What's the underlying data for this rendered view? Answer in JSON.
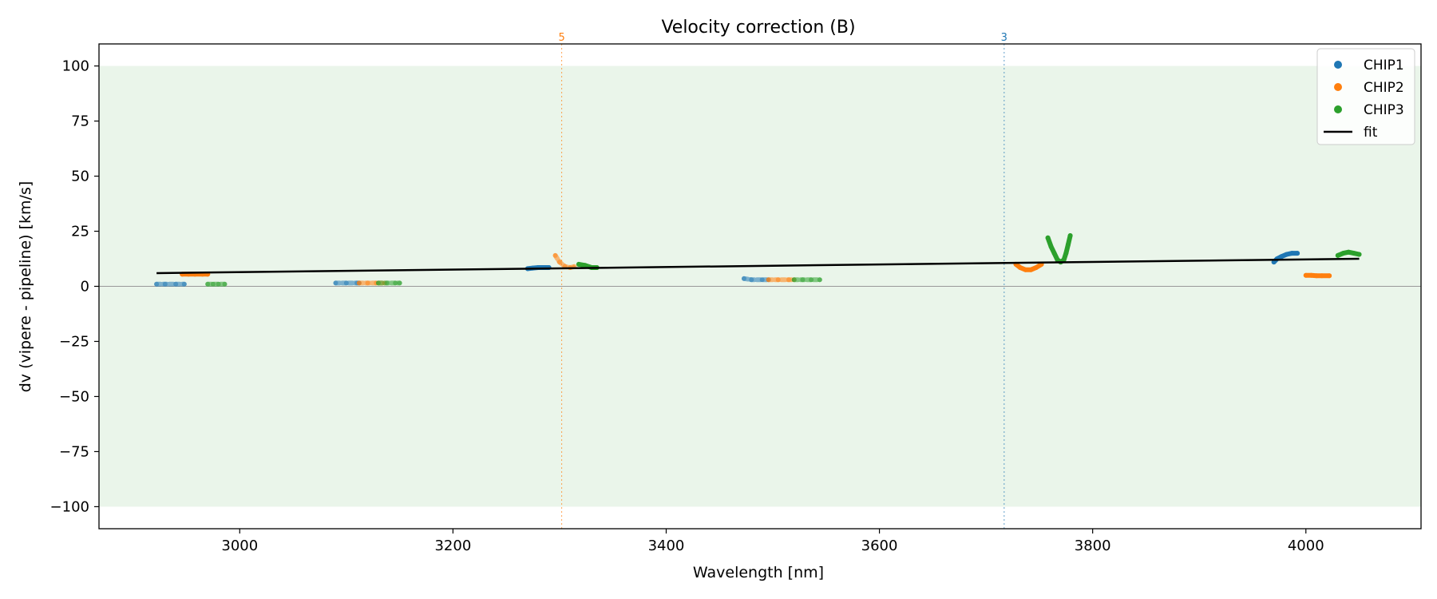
{
  "chart_data": {
    "type": "scatter",
    "title": "Velocity correction (B)",
    "xlabel": "Wavelength [nm]",
    "ylabel": "dv (vipere - pipeline) [km/s]",
    "xlim": [
      2868,
      4108
    ],
    "ylim": [
      -110,
      110
    ],
    "xticks": [
      3000,
      3200,
      3400,
      3600,
      3800,
      4000
    ],
    "yticks": [
      -100,
      -75,
      -50,
      -25,
      0,
      25,
      50,
      75,
      100
    ],
    "xtick_labels": [
      "3000",
      "3200",
      "3400",
      "3600",
      "3800",
      "4000"
    ],
    "ytick_labels": [
      "−100",
      "−75",
      "−50",
      "−25",
      "0",
      "25",
      "50",
      "75",
      "100"
    ],
    "grid": false,
    "legend_position": "top-right",
    "shaded_band": {
      "ymin": -100,
      "ymax": 100,
      "color": "#eaf5ea"
    },
    "zero_line": {
      "y": 0,
      "color": "#999999"
    },
    "colors": {
      "CHIP1": "#1f77b4",
      "CHIP2": "#ff7f0e",
      "CHIP3": "#2ca02c",
      "fit": "#000000"
    },
    "series": [
      {
        "name": "CHIP1",
        "color": "#1f77b4",
        "segments": [
          {
            "faded": true,
            "points": [
              [
                2922,
                1
              ],
              [
                2930,
                1
              ],
              [
                2940,
                1
              ],
              [
                2948,
                1
              ]
            ]
          },
          {
            "faded": true,
            "points": [
              [
                3090,
                1.5
              ],
              [
                3100,
                1.5
              ],
              [
                3110,
                1.5
              ],
              [
                3112,
                1.5
              ]
            ]
          },
          {
            "faded": false,
            "points": [
              [
                3270,
                8
              ],
              [
                3275,
                8.3
              ],
              [
                3280,
                8.5
              ],
              [
                3285,
                8.5
              ],
              [
                3290,
                8.5
              ]
            ]
          },
          {
            "faded": true,
            "points": [
              [
                3473,
                3.5
              ],
              [
                3480,
                3
              ],
              [
                3490,
                3
              ],
              [
                3496,
                3
              ]
            ]
          },
          {
            "faded": false,
            "points": [
              [
                3970,
                11
              ],
              [
                3973,
                12.5
              ],
              [
                3977,
                13.5
              ],
              [
                3982,
                14.5
              ],
              [
                3987,
                15
              ],
              [
                3992,
                15
              ]
            ]
          }
        ]
      },
      {
        "name": "CHIP2",
        "color": "#ff7f0e",
        "segments": [
          {
            "faded": false,
            "points": [
              [
                2946,
                5.5
              ],
              [
                2952,
                5.5
              ],
              [
                2958,
                5.5
              ],
              [
                2965,
                5.5
              ],
              [
                2970,
                5.5
              ]
            ]
          },
          {
            "faded": true,
            "points": [
              [
                3112,
                1.5
              ],
              [
                3120,
                1.5
              ],
              [
                3128,
                1.5
              ],
              [
                3136,
                1.5
              ]
            ]
          },
          {
            "faded": true,
            "points": [
              [
                3296,
                14
              ],
              [
                3300,
                11
              ],
              [
                3305,
                9
              ],
              [
                3310,
                8.5
              ],
              [
                3314,
                9
              ]
            ]
          },
          {
            "faded": true,
            "points": [
              [
                3496,
                3
              ],
              [
                3505,
                3
              ],
              [
                3515,
                3
              ],
              [
                3520,
                3
              ]
            ]
          },
          {
            "faded": false,
            "points": [
              [
                3728,
                10
              ],
              [
                3732,
                8.5
              ],
              [
                3737,
                7.5
              ],
              [
                3742,
                7.5
              ],
              [
                3747,
                8.5
              ],
              [
                3752,
                10
              ]
            ]
          },
          {
            "faded": false,
            "points": [
              [
                4000,
                5
              ],
              [
                4005,
                5
              ],
              [
                4010,
                4.8
              ],
              [
                4015,
                4.8
              ],
              [
                4022,
                4.8
              ]
            ]
          }
        ]
      },
      {
        "name": "CHIP3",
        "color": "#2ca02c",
        "segments": [
          {
            "faded": true,
            "points": [
              [
                2970,
                1
              ],
              [
                2975,
                1
              ],
              [
                2980,
                1
              ],
              [
                2986,
                1
              ]
            ]
          },
          {
            "faded": true,
            "points": [
              [
                3130,
                1.5
              ],
              [
                3138,
                1.5
              ],
              [
                3146,
                1.5
              ],
              [
                3150,
                1.5
              ]
            ]
          },
          {
            "faded": false,
            "points": [
              [
                3318,
                10
              ],
              [
                3324,
                9.5
              ],
              [
                3330,
                8.5
              ],
              [
                3335,
                8.5
              ]
            ]
          },
          {
            "faded": true,
            "points": [
              [
                3520,
                3
              ],
              [
                3528,
                3
              ],
              [
                3536,
                3
              ],
              [
                3544,
                3
              ]
            ]
          },
          {
            "faded": false,
            "points": [
              [
                3758,
                22
              ],
              [
                3761,
                18
              ],
              [
                3764,
                15
              ],
              [
                3767,
                12
              ],
              [
                3770,
                11
              ],
              [
                3773,
                12
              ],
              [
                3775,
                15
              ],
              [
                3777,
                19
              ],
              [
                3779,
                23
              ]
            ]
          },
          {
            "faded": false,
            "points": [
              [
                4030,
                14
              ],
              [
                4035,
                15
              ],
              [
                4040,
                15.5
              ],
              [
                4045,
                15
              ],
              [
                4050,
                14.5
              ]
            ]
          }
        ]
      }
    ],
    "fit": {
      "name": "fit",
      "color": "#000000",
      "points": [
        [
          2922,
          6
        ],
        [
          4050,
          12.5
        ]
      ]
    },
    "vlines": [
      {
        "x": 3302,
        "label": "5",
        "color": "#ff7f0e"
      },
      {
        "x": 3717,
        "label": "3",
        "color": "#1f77b4"
      }
    ]
  }
}
